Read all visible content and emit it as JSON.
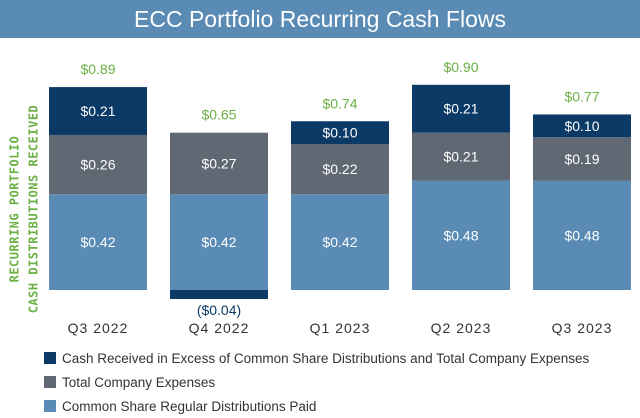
{
  "header": {
    "title": "ECC Portfolio Recurring Cash Flows"
  },
  "y_axis": {
    "label_lines": [
      "RECURRING PORTFOLIO",
      "CASH DISTRIBUTIONS RECEIVED"
    ]
  },
  "colors": {
    "excess": "#0b3a66",
    "expenses": "#5f6873",
    "distributions": "#5a8bb5",
    "total_label": "#6bb043",
    "neg_label": "#0b3a66",
    "bar_label": "#ffffff",
    "tick": "#333333"
  },
  "chart_data": {
    "type": "bar",
    "stacked": true,
    "title": "ECC Portfolio Recurring Cash Flows",
    "ylabel": "RECURRING PORTFOLIO CASH DISTRIBUTIONS RECEIVED",
    "xlabel": "",
    "ylim": [
      -0.04,
      0.9
    ],
    "grid": false,
    "legend_position": "bottom",
    "categories": [
      "Q3 2022",
      "Q4 2022",
      "Q1 2023",
      "Q2 2023",
      "Q3 2023"
    ],
    "series": [
      {
        "name": "Common Share Regular Distributions Paid",
        "key": "distributions",
        "values": [
          0.42,
          0.42,
          0.42,
          0.48,
          0.48
        ],
        "labels": [
          "$0.42",
          "$0.42",
          "$0.42",
          "$0.48",
          "$0.48"
        ]
      },
      {
        "name": "Total Company Expenses",
        "key": "expenses",
        "values": [
          0.26,
          0.27,
          0.22,
          0.21,
          0.19
        ],
        "labels": [
          "$0.26",
          "$0.27",
          "$0.22",
          "$0.21",
          "$0.19"
        ]
      },
      {
        "name": "Cash Received in Excess of Common Share Distributions and Total Company Expenses",
        "key": "excess",
        "values": [
          0.21,
          -0.04,
          0.1,
          0.21,
          0.1
        ],
        "labels": [
          "$0.21",
          "($0.04)",
          "$0.10",
          "$0.21",
          "$0.10"
        ]
      }
    ],
    "totals": [
      0.89,
      0.65,
      0.74,
      0.9,
      0.77
    ],
    "total_labels": [
      "$0.89",
      "$0.65",
      "$0.74",
      "$0.90",
      "$0.77"
    ]
  },
  "legend": [
    {
      "label": "Cash Received in Excess of Common Share Distributions and Total Company Expenses",
      "color_key": "excess"
    },
    {
      "label": "Total Company Expenses",
      "color_key": "expenses"
    },
    {
      "label": "Common Share Regular Distributions Paid",
      "color_key": "distributions"
    }
  ]
}
